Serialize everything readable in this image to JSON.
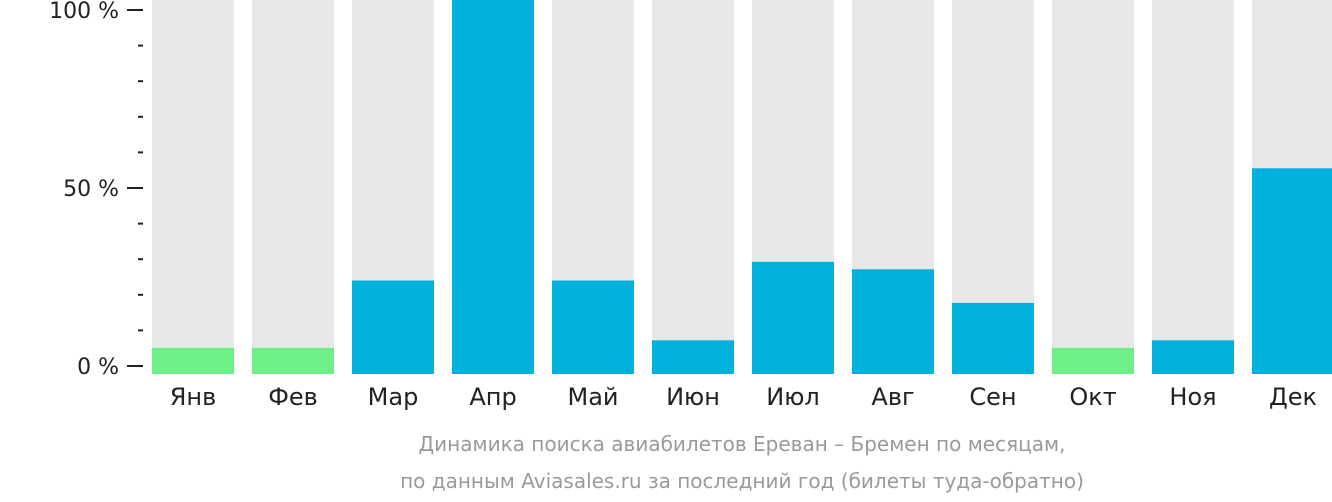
{
  "chart_data": {
    "type": "bar",
    "categories": [
      "Янв",
      "Фев",
      "Мар",
      "Апр",
      "Май",
      "Июн",
      "Июл",
      "Авг",
      "Сен",
      "Окт",
      "Ноя",
      "Дек"
    ],
    "values": [
      7,
      7,
      25,
      100,
      25,
      9,
      30,
      28,
      19,
      7,
      9,
      55
    ],
    "highlight": [
      true,
      true,
      false,
      false,
      false,
      false,
      false,
      false,
      false,
      true,
      false,
      false
    ],
    "ylim": [
      0,
      100
    ],
    "yticks": [
      {
        "value": 0,
        "label": "0 %"
      },
      {
        "value": 50,
        "label": "50 %"
      },
      {
        "value": 100,
        "label": "100 %"
      }
    ],
    "minor_tick_step": 10,
    "caption_line1": "Динамика поиска авиабилетов Ереван – Бремен по месяцам,",
    "caption_line2": "по данным Aviasales.ru за последний год (билеты туда-обратно)",
    "colors": {
      "bar": "#00b0dd",
      "bar_highlight": "#6ef089",
      "track": "#e8e8e8",
      "axis": "#222222",
      "caption": "#9a9a9a"
    }
  }
}
